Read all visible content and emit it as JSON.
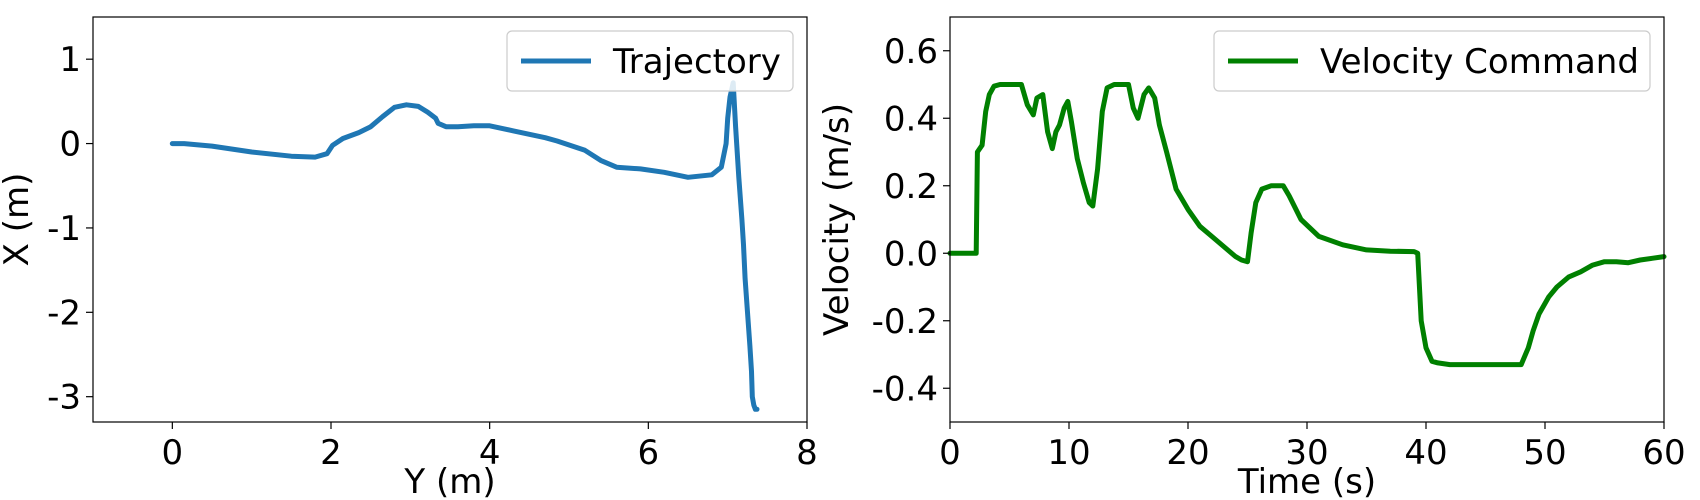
{
  "chart_data": [
    {
      "type": "line",
      "title": "",
      "xlabel": "Y (m)",
      "ylabel": "X (m)",
      "xlim": [
        -1,
        8
      ],
      "ylim": [
        -3.3,
        1.5
      ],
      "xticks": [
        0,
        2,
        4,
        6,
        8
      ],
      "yticks": [
        1,
        0,
        -1,
        -2,
        -3
      ],
      "xtick_labels": [
        "0",
        "2",
        "4",
        "6",
        "8"
      ],
      "ytick_labels": [
        "1",
        "0",
        "-1",
        "-2",
        "-3"
      ],
      "grid": false,
      "legend_position": "top-right",
      "series": [
        {
          "name": "Trajectory",
          "color": "#1f77b4",
          "x": [
            0.0,
            0.15,
            0.5,
            1.0,
            1.5,
            1.8,
            1.95,
            2.02,
            2.15,
            2.35,
            2.5,
            2.65,
            2.8,
            2.95,
            3.1,
            3.22,
            3.32,
            3.35,
            3.45,
            3.6,
            3.8,
            4.0,
            4.3,
            4.7,
            4.85,
            5.2,
            5.4,
            5.6,
            5.9,
            6.2,
            6.5,
            6.8,
            6.92,
            6.98,
            7.0,
            7.03,
            7.07,
            7.1,
            7.14,
            7.18,
            7.2,
            7.22,
            7.25,
            7.28,
            7.3,
            7.31,
            7.33,
            7.35,
            7.37
          ],
          "y": [
            0.0,
            0.0,
            -0.03,
            -0.1,
            -0.15,
            -0.16,
            -0.12,
            -0.02,
            0.06,
            0.13,
            0.2,
            0.32,
            0.43,
            0.46,
            0.44,
            0.37,
            0.3,
            0.24,
            0.2,
            0.2,
            0.21,
            0.21,
            0.15,
            0.07,
            0.03,
            -0.08,
            -0.2,
            -0.28,
            -0.3,
            -0.34,
            -0.4,
            -0.37,
            -0.28,
            0.0,
            0.3,
            0.55,
            0.72,
            0.2,
            -0.4,
            -0.9,
            -1.2,
            -1.6,
            -2.0,
            -2.4,
            -2.7,
            -3.0,
            -3.1,
            -3.15,
            -3.15
          ]
        }
      ]
    },
    {
      "type": "line",
      "title": "",
      "xlabel": "Time (s)",
      "ylabel": "Velocity (m/s)",
      "xlim": [
        0,
        60
      ],
      "ylim": [
        -0.5,
        0.7
      ],
      "xticks": [
        0,
        10,
        20,
        30,
        40,
        50,
        60
      ],
      "yticks": [
        0.6,
        0.4,
        0.2,
        0.0,
        -0.2,
        -0.4
      ],
      "xtick_labels": [
        "0",
        "10",
        "20",
        "30",
        "40",
        "50",
        "60"
      ],
      "ytick_labels": [
        "0.6",
        "0.4",
        "0.2",
        "0.0",
        "-0.2",
        "-0.4"
      ],
      "grid": false,
      "legend_position": "top-right",
      "series": [
        {
          "name": "Velocity Command",
          "color": "#008000",
          "x": [
            0,
            2.2,
            2.3,
            2.7,
            3.0,
            3.3,
            3.7,
            4.2,
            5.0,
            6.0,
            6.5,
            7.0,
            7.3,
            7.8,
            8.2,
            8.6,
            8.9,
            9.2,
            9.6,
            9.9,
            10.2,
            10.7,
            11.2,
            11.7,
            12.0,
            12.4,
            12.8,
            13.2,
            13.8,
            15.0,
            15.4,
            15.8,
            16.3,
            16.7,
            17.2,
            17.6,
            18.2,
            19.0,
            20.0,
            21.0,
            22.0,
            23.0,
            24.0,
            24.5,
            25.0,
            25.3,
            25.7,
            26.2,
            27.0,
            28.0,
            28.5,
            29.5,
            31.0,
            33.0,
            35.0,
            37.0,
            39.0,
            39.3,
            39.6,
            40.0,
            40.5,
            41.0,
            42.0,
            45.0,
            48.0,
            48.6,
            49.0,
            49.5,
            50.3,
            51.0,
            52.0,
            53.0,
            54.0,
            55.0,
            56.0,
            57.0,
            58.0,
            59.0,
            60.0
          ],
          "y": [
            0.0,
            0.0,
            0.3,
            0.32,
            0.42,
            0.47,
            0.495,
            0.5,
            0.5,
            0.5,
            0.44,
            0.41,
            0.46,
            0.47,
            0.36,
            0.31,
            0.36,
            0.38,
            0.43,
            0.45,
            0.39,
            0.28,
            0.21,
            0.15,
            0.14,
            0.25,
            0.42,
            0.49,
            0.5,
            0.5,
            0.43,
            0.4,
            0.47,
            0.49,
            0.46,
            0.38,
            0.3,
            0.19,
            0.13,
            0.08,
            0.05,
            0.02,
            -0.01,
            -0.02,
            -0.025,
            0.06,
            0.15,
            0.19,
            0.2,
            0.2,
            0.17,
            0.1,
            0.05,
            0.025,
            0.01,
            0.006,
            0.005,
            0.0,
            -0.2,
            -0.28,
            -0.32,
            -0.325,
            -0.33,
            -0.33,
            -0.33,
            -0.28,
            -0.23,
            -0.18,
            -0.13,
            -0.1,
            -0.07,
            -0.055,
            -0.035,
            -0.025,
            -0.025,
            -0.028,
            -0.02,
            -0.015,
            -0.01
          ]
        }
      ]
    }
  ]
}
